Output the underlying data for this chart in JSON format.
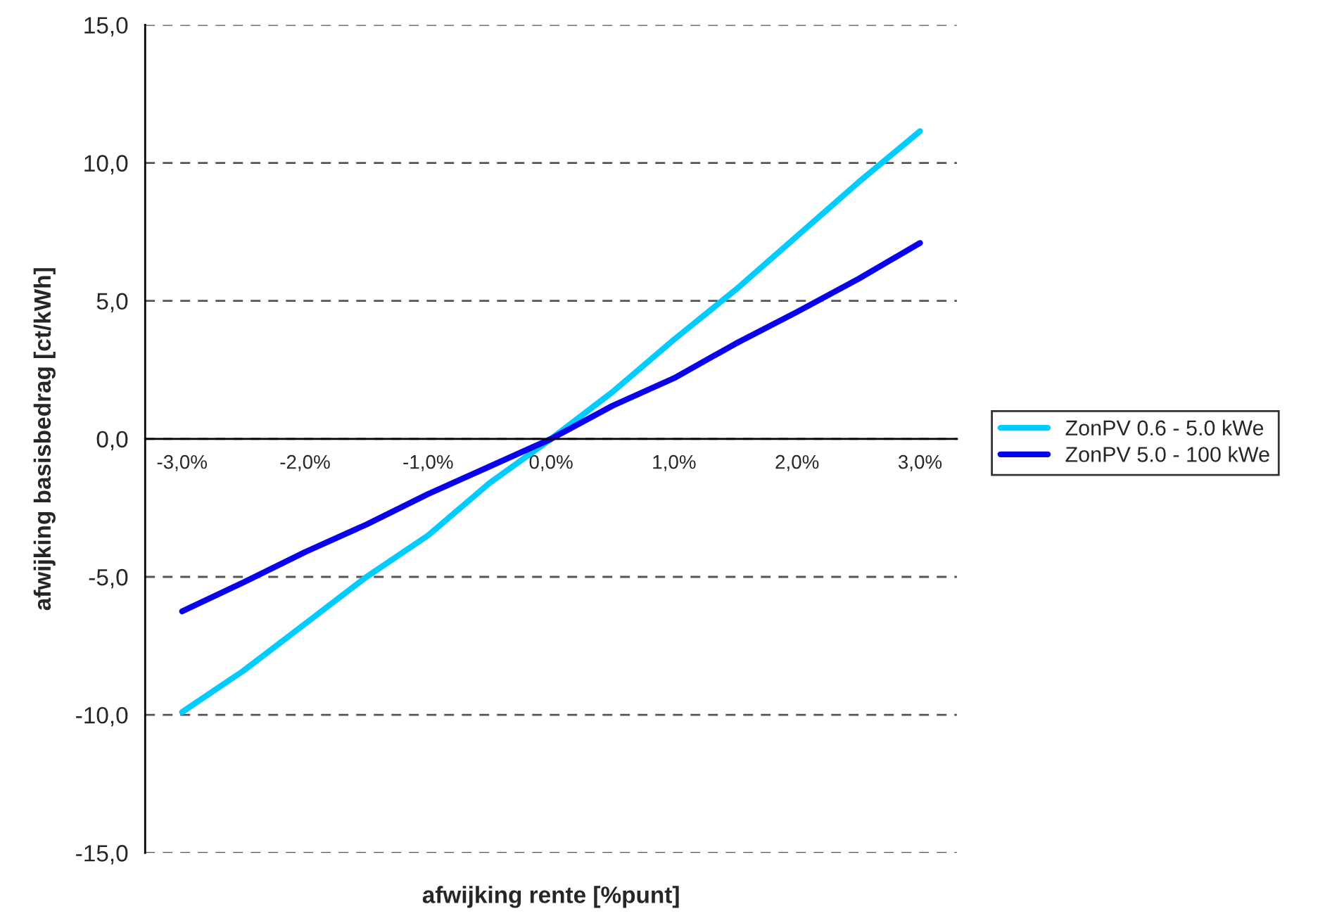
{
  "chart_data": {
    "type": "line",
    "xlabel": "afwijking rente [%punt]",
    "ylabel": "afwijking basisbedrag [ct/kWh]",
    "x": [
      -3.0,
      -2.5,
      -2.0,
      -1.5,
      -1.0,
      -0.5,
      0.0,
      0.5,
      1.0,
      1.5,
      2.0,
      2.5,
      3.0
    ],
    "series": [
      {
        "name": "ZonPV 0.6 - 5.0 kWe",
        "color": "#00ccff",
        "values": [
          -9.9,
          -8.4,
          -6.7,
          -5.0,
          -3.5,
          -1.6,
          0.0,
          1.7,
          3.6,
          5.4,
          7.35,
          9.3,
          11.15
        ]
      },
      {
        "name": "ZonPV 5.0 - 100 kWe",
        "color": "#0a00f0",
        "values": [
          -6.25,
          -5.2,
          -4.1,
          -3.1,
          -2.0,
          -1.0,
          0.0,
          1.2,
          2.2,
          3.45,
          4.6,
          5.8,
          7.1
        ]
      }
    ],
    "xlim": [
      -3.3,
      3.3
    ],
    "xticks": [
      {
        "value": -3,
        "label": "-3,0%"
      },
      {
        "value": -2,
        "label": "-2,0%"
      },
      {
        "value": -1,
        "label": "-1,0%"
      },
      {
        "value": 0,
        "label": "0,0%"
      },
      {
        "value": 1,
        "label": "1,0%"
      },
      {
        "value": 2,
        "label": "2,0%"
      },
      {
        "value": 3,
        "label": "3,0%"
      }
    ],
    "ylim": [
      -15,
      15
    ],
    "yticks": [
      {
        "value": -15,
        "label": "-15,0"
      },
      {
        "value": -10,
        "label": "-10,0"
      },
      {
        "value": -5,
        "label": "-5,0"
      },
      {
        "value": 0,
        "label": "0,0"
      },
      {
        "value": 5,
        "label": "5,0"
      },
      {
        "value": 10,
        "label": "10,0"
      },
      {
        "value": 15,
        "label": "15,0"
      }
    ],
    "grid": "y",
    "legend": "right",
    "marker": "none",
    "line_style": "solid"
  }
}
